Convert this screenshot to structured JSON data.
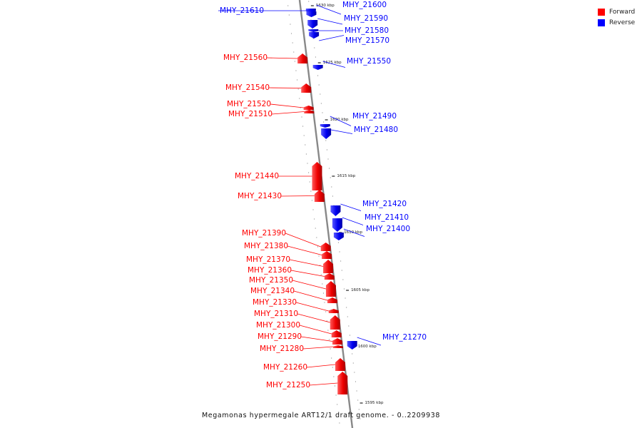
{
  "legend": {
    "forward_label": "Forward",
    "reverse_label": "Reverse",
    "forward_color": "#ff0000",
    "reverse_color": "#0000ff"
  },
  "caption": "Megamonas hypermegale ART12/1 draft genome. - 0..2209938",
  "scale_labels": [
    "1630 kbp",
    "1625 kbp",
    "1620 kbp",
    "1615 kbp",
    "1610 kbp",
    "1605 kbp",
    "1600 kbp",
    "1595 kbp"
  ],
  "genes": [
    {
      "name": "MHY_21610",
      "strand": "reverse"
    },
    {
      "name": "MHY_21600",
      "strand": "reverse"
    },
    {
      "name": "MHY_21590",
      "strand": "reverse"
    },
    {
      "name": "MHY_21580",
      "strand": "reverse"
    },
    {
      "name": "MHY_21570",
      "strand": "reverse"
    },
    {
      "name": "MHY_21560",
      "strand": "forward"
    },
    {
      "name": "MHY_21550",
      "strand": "reverse"
    },
    {
      "name": "MHY_21540",
      "strand": "forward"
    },
    {
      "name": "MHY_21520",
      "strand": "forward"
    },
    {
      "name": "MHY_21510",
      "strand": "forward"
    },
    {
      "name": "MHY_21490",
      "strand": "reverse"
    },
    {
      "name": "MHY_21480",
      "strand": "reverse"
    },
    {
      "name": "MHY_21440",
      "strand": "forward"
    },
    {
      "name": "MHY_21430",
      "strand": "forward"
    },
    {
      "name": "MHY_21420",
      "strand": "reverse"
    },
    {
      "name": "MHY_21410",
      "strand": "reverse"
    },
    {
      "name": "MHY_21400",
      "strand": "reverse"
    },
    {
      "name": "MHY_21390",
      "strand": "forward"
    },
    {
      "name": "MHY_21380",
      "strand": "forward"
    },
    {
      "name": "MHY_21370",
      "strand": "forward"
    },
    {
      "name": "MHY_21360",
      "strand": "forward"
    },
    {
      "name": "MHY_21350",
      "strand": "forward"
    },
    {
      "name": "MHY_21340",
      "strand": "forward"
    },
    {
      "name": "MHY_21330",
      "strand": "forward"
    },
    {
      "name": "MHY_21310",
      "strand": "forward"
    },
    {
      "name": "MHY_21300",
      "strand": "forward"
    },
    {
      "name": "MHY_21290",
      "strand": "forward"
    },
    {
      "name": "MHY_21280",
      "strand": "forward"
    },
    {
      "name": "MHY_21270",
      "strand": "reverse"
    },
    {
      "name": "MHY_21260",
      "strand": "forward"
    },
    {
      "name": "MHY_21250",
      "strand": "forward"
    }
  ]
}
